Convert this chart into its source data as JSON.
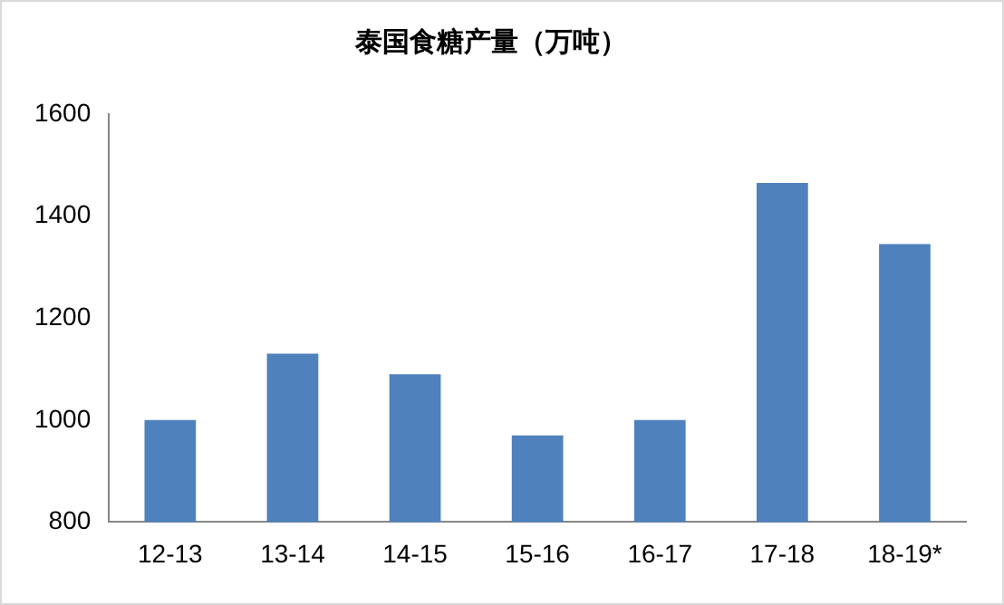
{
  "chart_data": {
    "type": "bar",
    "title": "泰国食糖产量（万吨）",
    "categories": [
      "12-13",
      "13-14",
      "14-15",
      "15-16",
      "16-17",
      "17-18",
      "18-19*"
    ],
    "values": [
      1000,
      1130,
      1090,
      970,
      1000,
      1465,
      1345
    ],
    "color": "#4f81bd",
    "ylim": [
      800,
      1600
    ],
    "yticks": [
      800,
      1000,
      1200,
      1400,
      1600
    ],
    "grid": false,
    "legend": false
  }
}
